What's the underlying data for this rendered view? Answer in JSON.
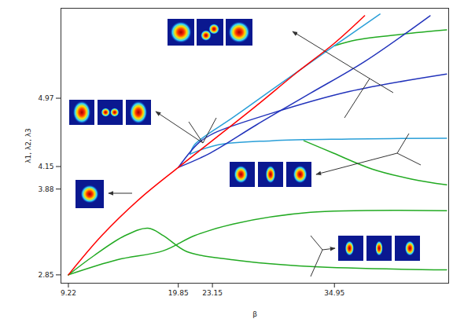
{
  "chart_data": {
    "type": "line",
    "xlabel": "β",
    "ylabel": "λ1, λ2, λ3",
    "xlim": [
      8.5,
      46
    ],
    "ylim": [
      2.75,
      6.05
    ],
    "xticks": [
      9.22,
      19.85,
      23.15,
      34.95
    ],
    "yticks": [
      2.85,
      3.88,
      4.15,
      4.97
    ],
    "grid": false,
    "series": [
      {
        "color": "#22aa22",
        "x": [
          9.22,
          11.69,
          14.68,
          16.92,
          18.42,
          20.66,
          25.15,
          32.63,
          45.8
        ],
        "values": [
          2.85,
          3.08,
          3.32,
          3.41,
          3.32,
          3.13,
          3.03,
          2.95,
          2.91
        ]
      },
      {
        "color": "#22aa22",
        "x": [
          9.22,
          13.93,
          18.42,
          21.41,
          25.15,
          32.63,
          45.8
        ],
        "values": [
          2.85,
          3.03,
          3.14,
          3.32,
          3.46,
          3.6,
          3.62
        ]
      },
      {
        "color": "#22aa22",
        "x": [
          32.0,
          34.87,
          38.6,
          42.4,
          45.8
        ],
        "values": [
          4.46,
          4.31,
          4.12,
          4.0,
          3.93
        ]
      },
      {
        "color": "#22aa22",
        "x": [
          34.95,
          37.1,
          41.6,
          45.8
        ],
        "values": [
          5.6,
          5.67,
          5.74,
          5.79
        ]
      },
      {
        "color": "#2a9fd8",
        "x": [
          21.0,
          23.65,
          28.89,
          36.37,
          45.8
        ],
        "values": [
          4.3,
          4.41,
          4.46,
          4.48,
          4.49
        ]
      },
      {
        "color": "#2a9fd8",
        "x": [
          21.0,
          21.41,
          25.15,
          28.89,
          34.95,
          39.36
        ],
        "values": [
          4.3,
          4.41,
          4.74,
          5.07,
          5.6,
          5.98
        ]
      },
      {
        "color": "#2233bb",
        "x": [
          19.85,
          22.91,
          27.4,
          32.63,
          37.87,
          44.2
        ],
        "values": [
          4.14,
          4.31,
          4.65,
          5.03,
          5.41,
          5.96
        ]
      },
      {
        "color": "#2233bb",
        "x": [
          19.85,
          21.78,
          23.28,
          28.89,
          36.37,
          45.8
        ],
        "values": [
          4.14,
          4.43,
          4.55,
          4.79,
          5.05,
          5.26
        ]
      },
      {
        "color": "#ff0000",
        "x": [
          9.22,
          12.44,
          16.18,
          19.85,
          23.13,
          27.4,
          31.13,
          34.95,
          37.87
        ],
        "values": [
          2.85,
          3.32,
          3.77,
          4.14,
          4.46,
          4.88,
          5.26,
          5.63,
          5.96
        ]
      }
    ]
  }
}
